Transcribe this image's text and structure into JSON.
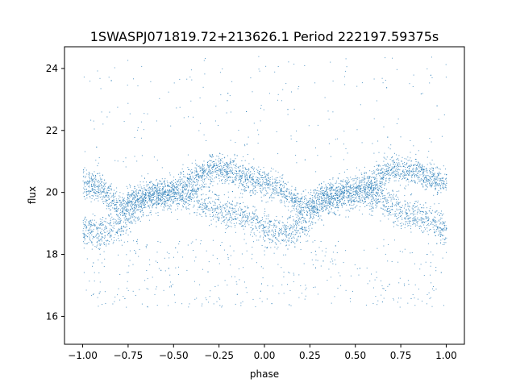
{
  "chart_data": {
    "type": "scatter",
    "title": "1SWASPJ071819.72+213626.1 Period 222197.59375s",
    "xlabel": "phase",
    "ylabel": "flux",
    "xlim": [
      -1.1,
      1.1
    ],
    "ylim": [
      15.1,
      24.7
    ],
    "xticks": [
      -1.0,
      -0.75,
      -0.5,
      -0.25,
      0.0,
      0.25,
      0.5,
      0.75,
      1.0
    ],
    "xtick_labels": [
      "−1.00",
      "−0.75",
      "−0.50",
      "−0.25",
      "0.00",
      "0.25",
      "0.50",
      "0.75",
      "1.00"
    ],
    "yticks": [
      16,
      18,
      20,
      22,
      24
    ],
    "ytick_labels": [
      "16",
      "18",
      "20",
      "22",
      "24"
    ],
    "grid": false,
    "marker_color": "#1f77b4",
    "series": [
      {
        "description_of_distribution": "dense light curve folded over two cycles",
        "profile": [
          {
            "phase": -1.0,
            "upper": 20.3,
            "lower": 18.8
          },
          {
            "phase": -0.9,
            "upper": 20.1,
            "lower": 18.7
          },
          {
            "phase": -0.8,
            "upper": 19.5,
            "lower": 18.9
          },
          {
            "phase": -0.7,
            "upper": 19.9,
            "lower": 19.6
          },
          {
            "phase": -0.6,
            "upper": 20.0,
            "lower": 19.8
          },
          {
            "phase": -0.5,
            "upper": 20.1,
            "lower": 19.9
          },
          {
            "phase": -0.4,
            "upper": 20.4,
            "lower": 19.9
          },
          {
            "phase": -0.3,
            "upper": 20.8,
            "lower": 19.6
          },
          {
            "phase": -0.2,
            "upper": 20.7,
            "lower": 19.3
          },
          {
            "phase": -0.1,
            "upper": 20.5,
            "lower": 19.2
          },
          {
            "phase": 0.0,
            "upper": 20.3,
            "lower": 18.8
          }
        ]
      }
    ]
  }
}
